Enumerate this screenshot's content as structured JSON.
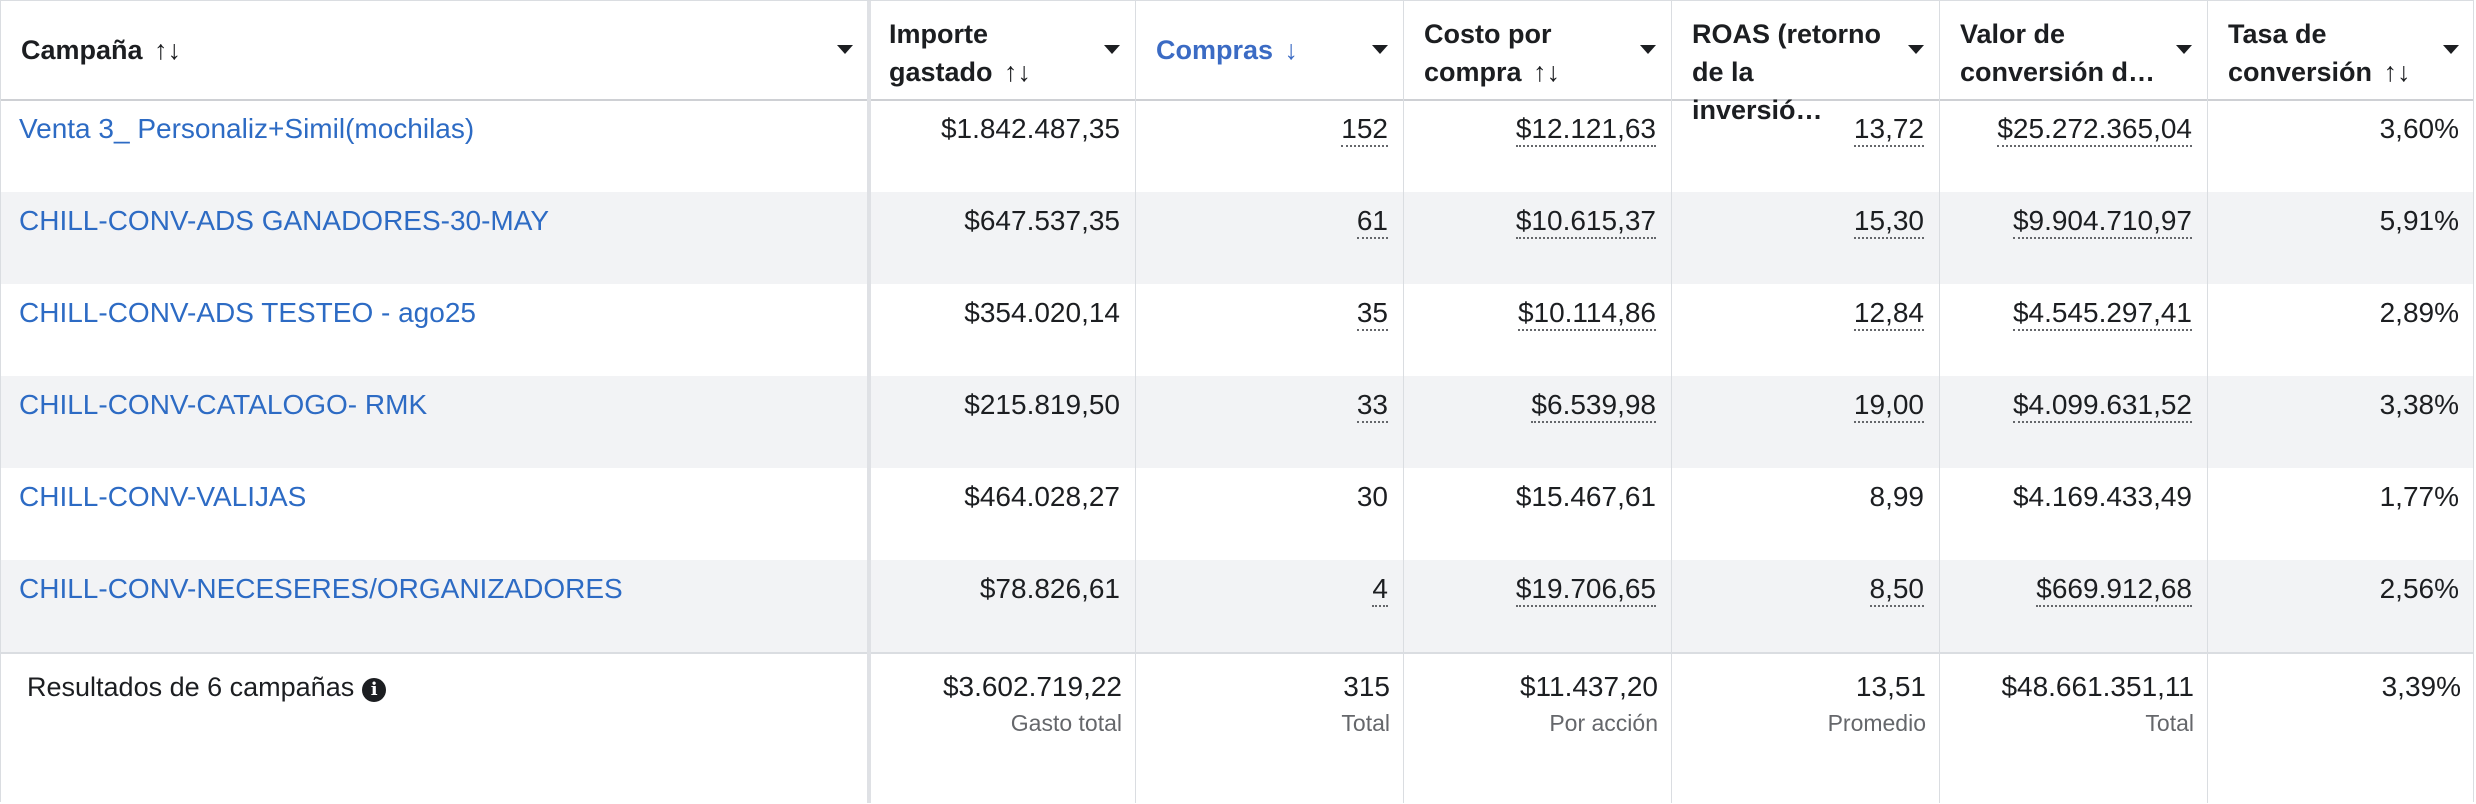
{
  "columns": [
    {
      "label": "Campaña",
      "sort": "↑↓"
    },
    {
      "label": "Importe gastado",
      "sort": "↑↓"
    },
    {
      "label": "Compras",
      "sort": "↓"
    },
    {
      "label": "Costo por compra",
      "sort": "↑↓"
    },
    {
      "label": "ROAS (retorno de la inversió…"
    },
    {
      "label": "Valor de conversión d…"
    },
    {
      "label": "Tasa de conversión",
      "sort": "↑↓"
    }
  ],
  "rows": [
    {
      "name": "Venta 3_ Personaliz+Simil(mochilas)",
      "spend": "$1.842.487,35",
      "purchases": "152",
      "cost": "$12.121,63",
      "roas": "13,72",
      "value": "$25.272.365,04",
      "rate": "3,60%"
    },
    {
      "name": "CHILL-CONV-ADS GANADORES-30-MAY",
      "spend": "$647.537,35",
      "purchases": "61",
      "cost": "$10.615,37",
      "roas": "15,30",
      "value": "$9.904.710,97",
      "rate": "5,91%"
    },
    {
      "name": "CHILL-CONV-ADS TESTEO - ago25",
      "spend": "$354.020,14",
      "purchases": "35",
      "cost": "$10.114,86",
      "roas": "12,84",
      "value": "$4.545.297,41",
      "rate": "2,89%"
    },
    {
      "name": "CHILL-CONV-CATALOGO- RMK",
      "spend": "$215.819,50",
      "purchases": "33",
      "cost": "$6.539,98",
      "roas": "19,00",
      "value": "$4.099.631,52",
      "rate": "3,38%"
    },
    {
      "name": "CHILL-CONV-VALIJAS",
      "spend": "$464.028,27",
      "purchases": "30",
      "cost": "$15.467,61",
      "roas": "8,99",
      "value": "$4.169.433,49",
      "rate": "1,77%"
    },
    {
      "name": "CHILL-CONV-NECESERES/ORGANIZADORES",
      "spend": "$78.826,61",
      "purchases": "4",
      "cost": "$19.706,65",
      "roas": "8,50",
      "value": "$669.912,68",
      "rate": "2,56%"
    }
  ],
  "footer": {
    "label": "Resultados de 6 campañas",
    "info_icon": "i",
    "spend": "$3.602.719,22",
    "spend_sub": "Gasto total",
    "purchases": "315",
    "purchases_sub": "Total",
    "cost": "$11.437,20",
    "cost_sub": "Por acción",
    "roas": "13,51",
    "roas_sub": "Promedio",
    "value": "$48.661.351,11",
    "value_sub": "Total",
    "rate": "3,39%"
  },
  "colors": {
    "link": "#2d6bc4",
    "sorted_header": "#3b6bc4",
    "alt_row": "#f2f3f5"
  }
}
